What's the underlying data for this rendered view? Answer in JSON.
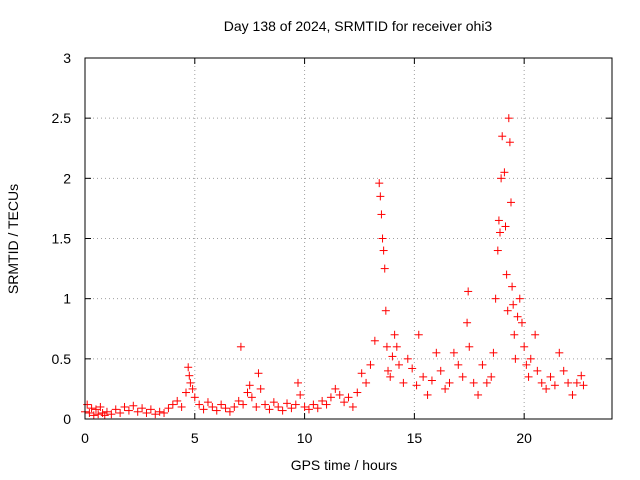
{
  "chart_data": {
    "type": "scatter",
    "title": "Day 138 of 2024, SRMTID for receiver ohi3",
    "xlabel": "GPS time / hours",
    "ylabel": "SRMTID / TECUs",
    "xlim": [
      0,
      24
    ],
    "ylim": [
      0,
      3
    ],
    "xticks": [
      0,
      5,
      10,
      15,
      20
    ],
    "xtick_labels": [
      "0",
      "5",
      "10",
      "15",
      "20"
    ],
    "yticks": [
      0,
      0.5,
      1,
      1.5,
      2,
      2.5,
      3
    ],
    "ytick_labels": [
      "0",
      "0.5",
      "1",
      "1.5",
      "2",
      "2.5",
      "3"
    ],
    "grid": true,
    "marker": "+",
    "color": "#ff0000",
    "series": [
      {
        "name": "SRMTID",
        "points": [
          [
            0.0,
            0.06
          ],
          [
            0.1,
            0.12
          ],
          [
            0.2,
            0.05
          ],
          [
            0.3,
            0.09
          ],
          [
            0.4,
            0.03
          ],
          [
            0.5,
            0.08
          ],
          [
            0.6,
            0.04
          ],
          [
            0.7,
            0.1
          ],
          [
            0.8,
            0.05
          ],
          [
            0.9,
            0.03
          ],
          [
            1.0,
            0.06
          ],
          [
            1.2,
            0.04
          ],
          [
            1.4,
            0.08
          ],
          [
            1.6,
            0.05
          ],
          [
            1.8,
            0.1
          ],
          [
            2.0,
            0.07
          ],
          [
            2.2,
            0.11
          ],
          [
            2.4,
            0.06
          ],
          [
            2.6,
            0.09
          ],
          [
            2.8,
            0.05
          ],
          [
            3.0,
            0.08
          ],
          [
            3.2,
            0.04
          ],
          [
            3.4,
            0.06
          ],
          [
            3.6,
            0.05
          ],
          [
            3.8,
            0.09
          ],
          [
            4.0,
            0.12
          ],
          [
            4.2,
            0.15
          ],
          [
            4.4,
            0.1
          ],
          [
            4.6,
            0.22
          ],
          [
            4.7,
            0.43
          ],
          [
            4.75,
            0.36
          ],
          [
            4.8,
            0.3
          ],
          [
            4.9,
            0.25
          ],
          [
            5.0,
            0.18
          ],
          [
            5.2,
            0.12
          ],
          [
            5.4,
            0.08
          ],
          [
            5.6,
            0.14
          ],
          [
            5.8,
            0.1
          ],
          [
            6.0,
            0.07
          ],
          [
            6.2,
            0.12
          ],
          [
            6.4,
            0.09
          ],
          [
            6.6,
            0.06
          ],
          [
            6.8,
            0.1
          ],
          [
            7.0,
            0.15
          ],
          [
            7.1,
            0.6
          ],
          [
            7.2,
            0.12
          ],
          [
            7.4,
            0.22
          ],
          [
            7.5,
            0.28
          ],
          [
            7.6,
            0.18
          ],
          [
            7.8,
            0.1
          ],
          [
            7.9,
            0.38
          ],
          [
            8.0,
            0.25
          ],
          [
            8.2,
            0.12
          ],
          [
            8.4,
            0.08
          ],
          [
            8.6,
            0.14
          ],
          [
            8.8,
            0.1
          ],
          [
            9.0,
            0.07
          ],
          [
            9.2,
            0.13
          ],
          [
            9.4,
            0.09
          ],
          [
            9.6,
            0.12
          ],
          [
            9.7,
            0.3
          ],
          [
            9.8,
            0.2
          ],
          [
            10.0,
            0.1
          ],
          [
            10.2,
            0.08
          ],
          [
            10.4,
            0.12
          ],
          [
            10.6,
            0.09
          ],
          [
            10.8,
            0.15
          ],
          [
            11.0,
            0.12
          ],
          [
            11.2,
            0.18
          ],
          [
            11.4,
            0.25
          ],
          [
            11.6,
            0.2
          ],
          [
            11.8,
            0.14
          ],
          [
            12.0,
            0.18
          ],
          [
            12.2,
            0.1
          ],
          [
            12.4,
            0.22
          ],
          [
            12.6,
            0.38
          ],
          [
            12.8,
            0.3
          ],
          [
            13.0,
            0.45
          ],
          [
            13.2,
            0.65
          ],
          [
            13.4,
            1.96
          ],
          [
            13.45,
            1.85
          ],
          [
            13.5,
            1.7
          ],
          [
            13.55,
            1.5
          ],
          [
            13.6,
            1.4
          ],
          [
            13.65,
            1.25
          ],
          [
            13.7,
            0.9
          ],
          [
            13.75,
            0.6
          ],
          [
            13.8,
            0.4
          ],
          [
            13.9,
            0.35
          ],
          [
            14.0,
            0.52
          ],
          [
            14.1,
            0.7
          ],
          [
            14.2,
            0.6
          ],
          [
            14.3,
            0.45
          ],
          [
            14.5,
            0.3
          ],
          [
            14.7,
            0.5
          ],
          [
            14.9,
            0.42
          ],
          [
            15.1,
            0.28
          ],
          [
            15.2,
            0.7
          ],
          [
            15.4,
            0.35
          ],
          [
            15.6,
            0.2
          ],
          [
            15.8,
            0.32
          ],
          [
            16.0,
            0.55
          ],
          [
            16.2,
            0.4
          ],
          [
            16.4,
            0.25
          ],
          [
            16.6,
            0.3
          ],
          [
            16.8,
            0.55
          ],
          [
            17.0,
            0.45
          ],
          [
            17.2,
            0.35
          ],
          [
            17.4,
            0.8
          ],
          [
            17.45,
            1.06
          ],
          [
            17.5,
            0.6
          ],
          [
            17.7,
            0.3
          ],
          [
            17.9,
            0.2
          ],
          [
            18.1,
            0.45
          ],
          [
            18.3,
            0.3
          ],
          [
            18.5,
            0.35
          ],
          [
            18.6,
            0.55
          ],
          [
            18.7,
            1.0
          ],
          [
            18.8,
            1.4
          ],
          [
            18.85,
            1.65
          ],
          [
            18.9,
            1.55
          ],
          [
            18.95,
            2.0
          ],
          [
            19.0,
            2.35
          ],
          [
            19.1,
            2.05
          ],
          [
            19.15,
            1.6
          ],
          [
            19.2,
            1.2
          ],
          [
            19.25,
            0.9
          ],
          [
            19.3,
            2.5
          ],
          [
            19.35,
            2.3
          ],
          [
            19.4,
            1.8
          ],
          [
            19.45,
            1.1
          ],
          [
            19.5,
            0.95
          ],
          [
            19.55,
            0.7
          ],
          [
            19.6,
            0.5
          ],
          [
            19.7,
            0.85
          ],
          [
            19.8,
            1.0
          ],
          [
            19.9,
            0.8
          ],
          [
            20.0,
            0.6
          ],
          [
            20.1,
            0.45
          ],
          [
            20.2,
            0.35
          ],
          [
            20.3,
            0.5
          ],
          [
            20.5,
            0.7
          ],
          [
            20.6,
            0.4
          ],
          [
            20.8,
            0.3
          ],
          [
            21.0,
            0.25
          ],
          [
            21.2,
            0.35
          ],
          [
            21.4,
            0.28
          ],
          [
            21.6,
            0.55
          ],
          [
            21.8,
            0.4
          ],
          [
            22.0,
            0.3
          ],
          [
            22.2,
            0.2
          ],
          [
            22.4,
            0.3
          ],
          [
            22.6,
            0.36
          ],
          [
            22.7,
            0.28
          ]
        ]
      }
    ]
  }
}
